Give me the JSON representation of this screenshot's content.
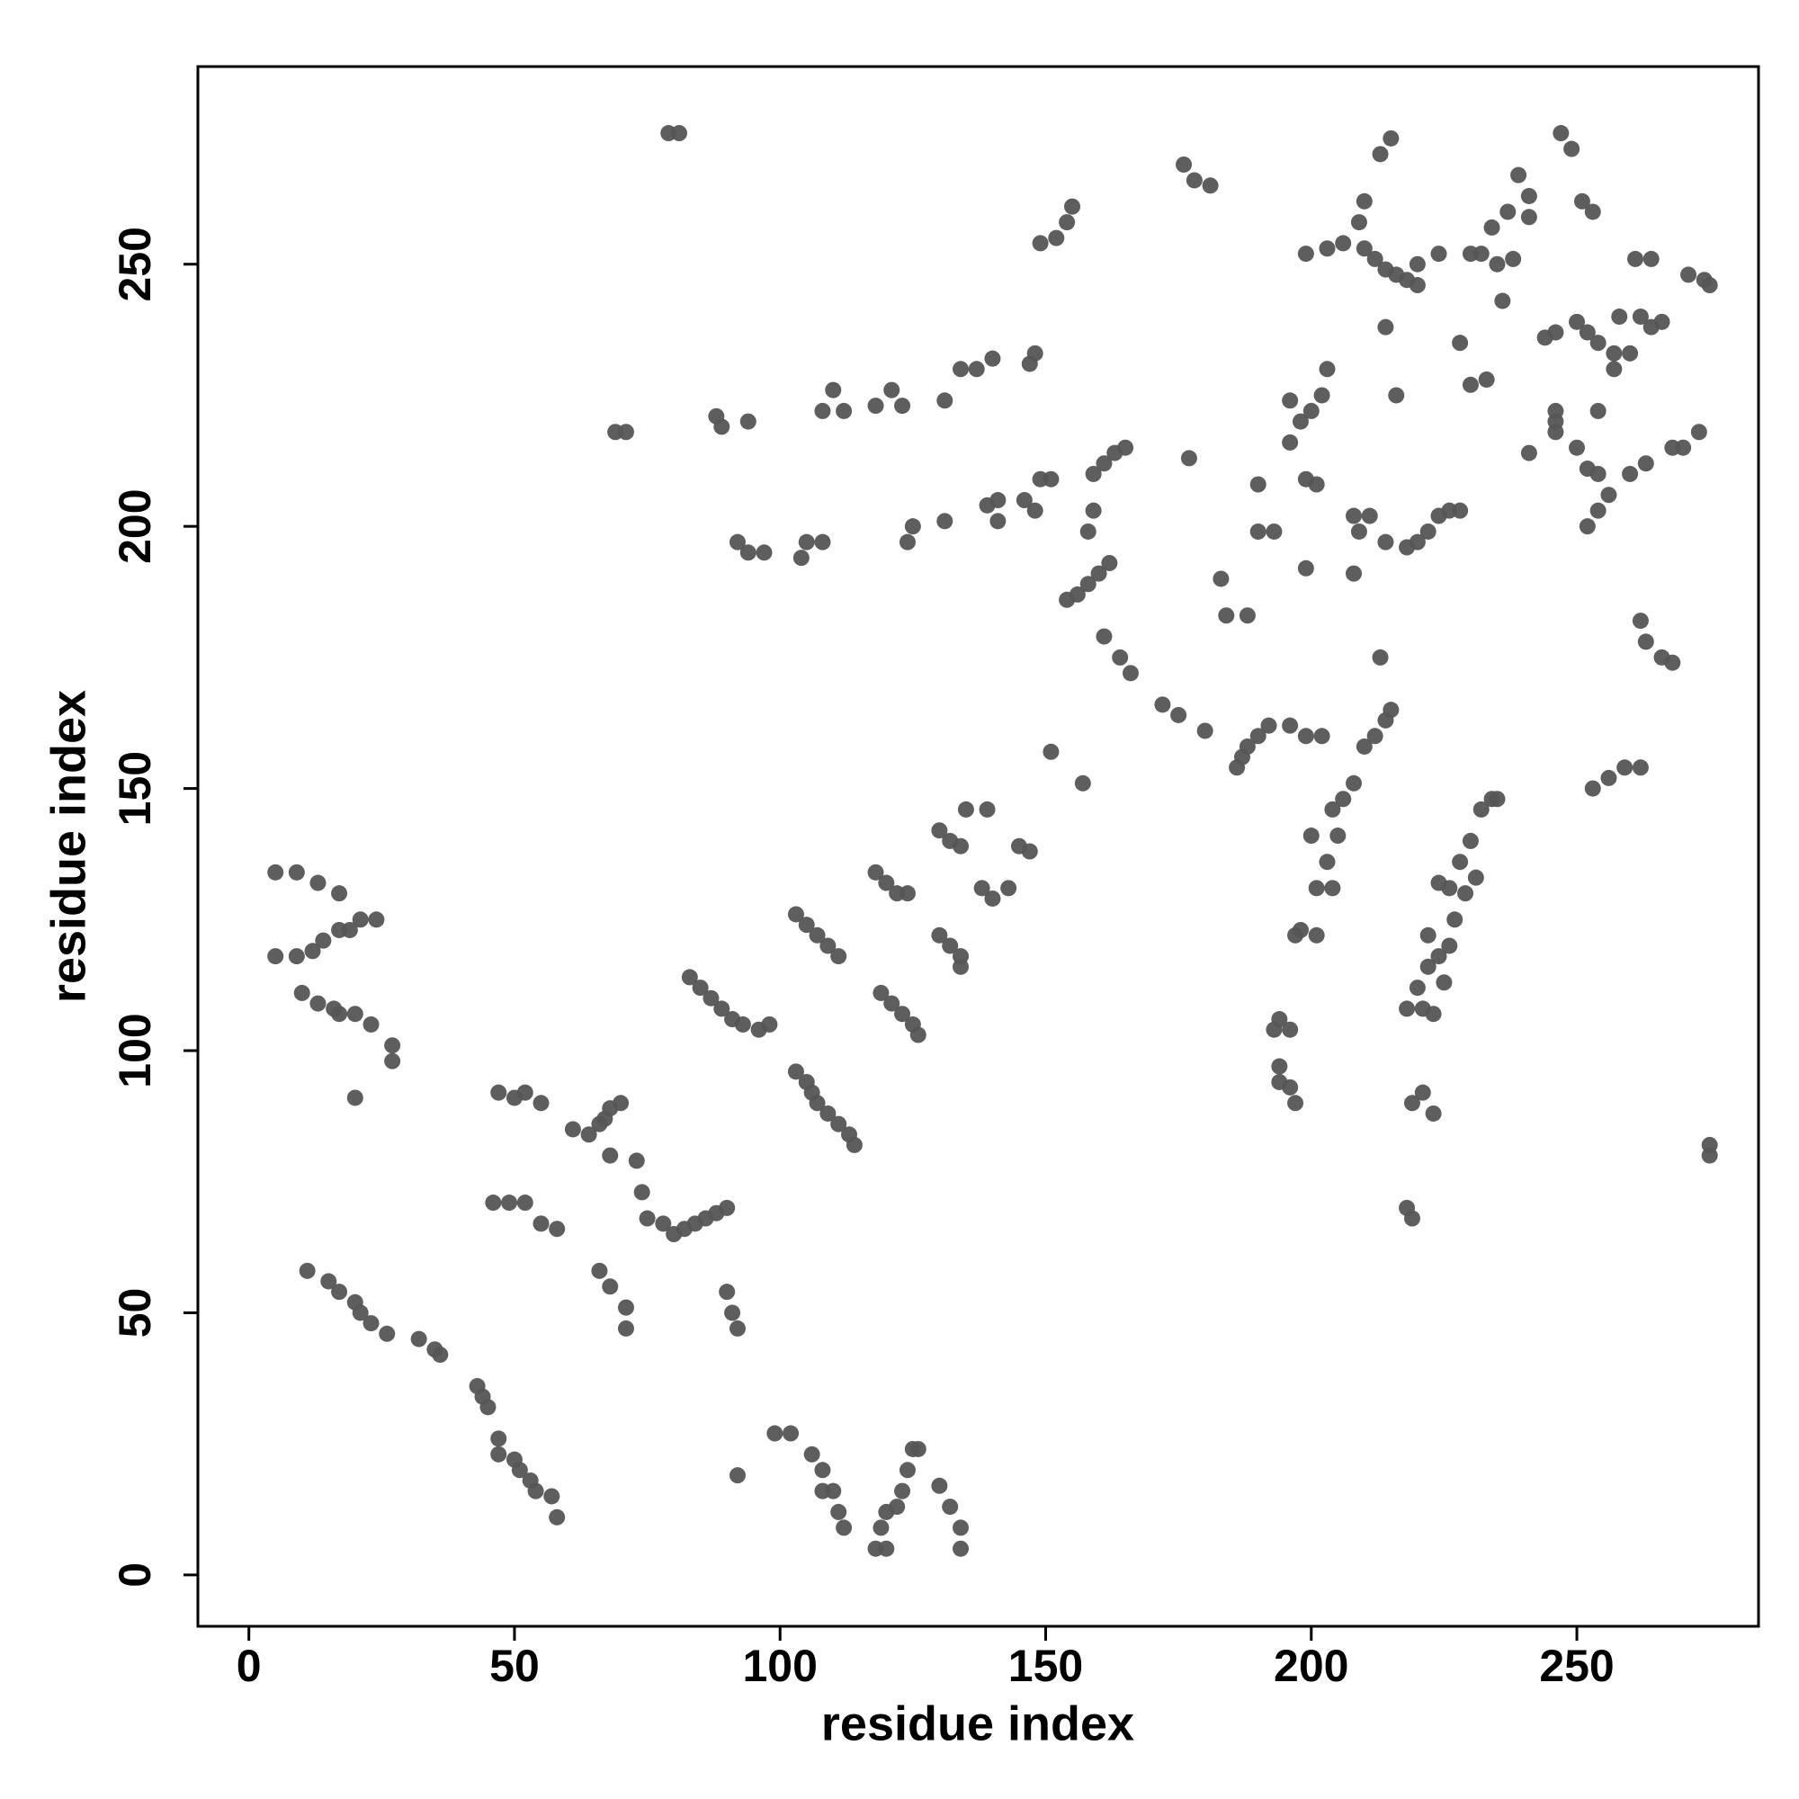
{
  "chart_data": {
    "type": "scatter",
    "xlabel": "residue index",
    "ylabel": "residue index",
    "xlim": [
      -9.6,
      284.2
    ],
    "ylim": [
      -9.8,
      287.7
    ],
    "xticks": [
      0,
      50,
      100,
      150,
      200,
      250
    ],
    "yticks": [
      0,
      50,
      100,
      150,
      200,
      250
    ],
    "series": [
      {
        "color": "#555555",
        "x": [
          11,
          15,
          17,
          20,
          21,
          23,
          26,
          32,
          35,
          36,
          43,
          44,
          45,
          47,
          47,
          50,
          51,
          53,
          54,
          57,
          58,
          5,
          9,
          13,
          17,
          5,
          9,
          12,
          14,
          17,
          19,
          21,
          24,
          10,
          13,
          16,
          17,
          20,
          23,
          27,
          27,
          20,
          47,
          50,
          52,
          55,
          46,
          49,
          52,
          55,
          58,
          66,
          68,
          71,
          71,
          61,
          64,
          66,
          67,
          68,
          70,
          68,
          73,
          74,
          75,
          78,
          80,
          82,
          84,
          86,
          88,
          90,
          90,
          91,
          92,
          79,
          81,
          69,
          71,
          88,
          89,
          94,
          92,
          94,
          97,
          104,
          105,
          108,
          108,
          110,
          112,
          118,
          121,
          123,
          124,
          125,
          131,
          131,
          134,
          137,
          140,
          139,
          141,
          141,
          147,
          148,
          146,
          148,
          149,
          151,
          149,
          152,
          154,
          155,
          83,
          85,
          87,
          89,
          91,
          93,
          96,
          98,
          103,
          105,
          106,
          107,
          109,
          111,
          113,
          114,
          103,
          105,
          107,
          109,
          111,
          118,
          120,
          122,
          124,
          119,
          121,
          123,
          125,
          126,
          130,
          132,
          134,
          130,
          132,
          134,
          134,
          135,
          139,
          138,
          140,
          143,
          145,
          147,
          92,
          99,
          102,
          106,
          108,
          108,
          110,
          111,
          112,
          118,
          120,
          119,
          120,
          122,
          123,
          124,
          125,
          126,
          130,
          132,
          134,
          134,
          151,
          157,
          158,
          159,
          154,
          156,
          158,
          160,
          162,
          159,
          161,
          163,
          165,
          161,
          164,
          166,
          172,
          175,
          177,
          176,
          178,
          181,
          180,
          183,
          184,
          186,
          187,
          188,
          190,
          192,
          196,
          199,
          202,
          188,
          190,
          190,
          193,
          196,
          196,
          198,
          200,
          202,
          203,
          199,
          201,
          199,
          199,
          203,
          206,
          210,
          212,
          214,
          216,
          218,
          220,
          214,
          208,
          208,
          211,
          209,
          210,
          213,
          215,
          209,
          214,
          218,
          220,
          222,
          224,
          226,
          228,
          230,
          224,
          220,
          228,
          230,
          233,
          232,
          234,
          235,
          236,
          237,
          239,
          241,
          241,
          238,
          244,
          246,
          246,
          247,
          249,
          250,
          252,
          254,
          256,
          254,
          252,
          246,
          250,
          252,
          254,
          257,
          260,
          258,
          262,
          264,
          266,
          261,
          264,
          257,
          254,
          263,
          260,
          268,
          270,
          273,
          271,
          274,
          275,
          251,
          253,
          246,
          241,
          216,
          212,
          210,
          214,
          215,
          213,
          208,
          206,
          204,
          205,
          203,
          201,
          204,
          200,
          198,
          201,
          197,
          194,
          196,
          193,
          194,
          196,
          197,
          194,
          218,
          221,
          220,
          222,
          224,
          226,
          222,
          219,
          221,
          223,
          218,
          219,
          226,
          228,
          230,
          231,
          232,
          234,
          235,
          263,
          266,
          268,
          262,
          253,
          256,
          259,
          262,
          275,
          275,
          223,
          225,
          227,
          229,
          224
        ],
        "values": [
          58,
          56,
          54,
          52,
          50,
          48,
          46,
          45,
          43,
          42,
          36,
          34,
          32,
          26,
          23,
          22,
          20,
          18,
          16,
          15,
          11,
          134,
          134,
          132,
          130,
          118,
          118,
          119,
          121,
          123,
          123,
          125,
          125,
          111,
          109,
          108,
          107,
          107,
          105,
          101,
          98,
          91,
          92,
          91,
          92,
          90,
          71,
          71,
          71,
          67,
          66,
          58,
          55,
          51,
          47,
          85,
          84,
          86,
          87,
          89,
          90,
          80,
          79,
          73,
          68,
          67,
          65,
          66,
          67,
          68,
          69,
          70,
          54,
          50,
          47,
          275,
          275,
          218,
          218,
          221,
          219,
          220,
          197,
          195,
          195,
          194,
          197,
          197,
          222,
          226,
          222,
          223,
          226,
          223,
          197,
          200,
          201,
          224,
          230,
          230,
          232,
          204,
          205,
          201,
          231,
          233,
          205,
          203,
          209,
          209,
          254,
          255,
          258,
          261,
          114,
          112,
          110,
          108,
          106,
          105,
          104,
          105,
          96,
          94,
          92,
          90,
          88,
          86,
          84,
          82,
          126,
          124,
          122,
          120,
          118,
          134,
          132,
          130,
          130,
          111,
          109,
          107,
          105,
          103,
          142,
          140,
          139,
          122,
          120,
          118,
          116,
          146,
          146,
          131,
          129,
          131,
          139,
          138,
          19,
          27,
          27,
          23,
          20,
          16,
          16,
          12,
          9,
          5,
          5,
          9,
          12,
          13,
          16,
          20,
          24,
          24,
          17,
          13,
          9,
          5,
          157,
          151,
          199,
          203,
          186,
          187,
          189,
          191,
          193,
          210,
          212,
          214,
          215,
          179,
          175,
          172,
          166,
          164,
          213,
          269,
          266,
          265,
          161,
          190,
          183,
          154,
          156,
          158,
          160,
          162,
          162,
          160,
          160,
          183,
          208,
          199,
          199,
          224,
          216,
          220,
          222,
          225,
          230,
          209,
          208,
          192,
          252,
          253,
          254,
          253,
          251,
          249,
          248,
          247,
          246,
          238,
          191,
          202,
          202,
          258,
          262,
          271,
          274,
          199,
          197,
          196,
          197,
          199,
          202,
          203,
          203,
          252,
          252,
          250,
          235,
          227,
          228,
          252,
          257,
          250,
          243,
          260,
          267,
          263,
          259,
          251,
          236,
          237,
          218,
          275,
          272,
          215,
          211,
          210,
          206,
          203,
          200,
          220,
          239,
          237,
          235,
          233,
          233,
          240,
          240,
          238,
          239,
          251,
          251,
          230,
          222,
          212,
          210,
          215,
          215,
          218,
          248,
          247,
          246,
          262,
          260,
          222,
          214,
          225,
          160,
          158,
          163,
          165,
          175,
          151,
          148,
          146,
          141,
          136,
          131,
          131,
          141,
          123,
          122,
          122,
          106,
          104,
          104,
          97,
          93,
          90,
          94,
          108,
          108,
          112,
          116,
          118,
          120,
          122,
          90,
          92,
          88,
          70,
          68,
          131,
          136,
          140,
          133,
          146,
          148,
          148,
          178,
          175,
          174,
          182,
          150,
          152,
          154,
          154,
          80,
          82,
          107,
          113,
          125,
          130,
          132
        ]
      }
    ]
  }
}
